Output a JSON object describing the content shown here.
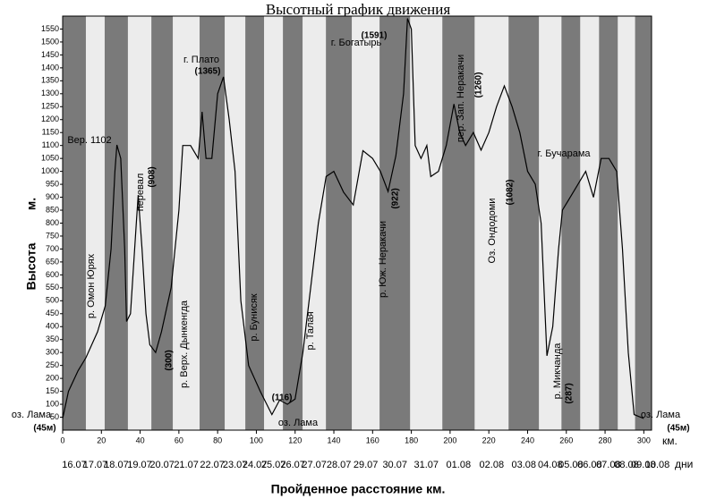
{
  "chart_data": {
    "type": "line",
    "title": "Высотный график движения",
    "xlabel": "Пройденное расстояние км.",
    "ylabel": "Высота",
    "ylabel_unit": "м.",
    "x_unit": "км.",
    "day_unit": "дни",
    "color": "#000000",
    "xlim": [
      0,
      304
    ],
    "ylim": [
      0,
      1600
    ],
    "xticks": [
      0,
      20,
      40,
      60,
      80,
      100,
      120,
      140,
      160,
      180,
      200,
      220,
      240,
      260,
      280,
      300
    ],
    "yticks": [
      50,
      100,
      150,
      200,
      250,
      300,
      350,
      400,
      450,
      500,
      550,
      600,
      650,
      700,
      750,
      800,
      850,
      900,
      950,
      1000,
      1050,
      1100,
      1150,
      1200,
      1250,
      1300,
      1350,
      1400,
      1450,
      1500,
      1550
    ],
    "days": {
      "labels": [
        "16.07",
        "17.07",
        "18.07",
        "19.07",
        "20.07",
        "21.07",
        "22.07",
        "23.07",
        "24.07",
        "25.07",
        "26.07",
        "27.07",
        "28.07",
        "29.07",
        "30.07",
        "31.07",
        "01.08",
        "02.08",
        "03.08",
        "04.08",
        "05.08",
        "06.08",
        "07.08",
        "08.08",
        "09.08",
        "10.08"
      ],
      "bounds": [
        0,
        12,
        21.7,
        33.7,
        45.8,
        56.9,
        70.7,
        83.7,
        94.3,
        104,
        113.7,
        123.9,
        135.9,
        149.3,
        163.6,
        179.4,
        196,
        212.7,
        230.2,
        245.9,
        257.5,
        267.2,
        276.9,
        286.6,
        295.5,
        304,
        310
      ]
    },
    "x": [
      0,
      3,
      8,
      12,
      18,
      22,
      25,
      27,
      28,
      30,
      32,
      33,
      35,
      38,
      39,
      41,
      43,
      45,
      48,
      51,
      56,
      60,
      62,
      66,
      70,
      72,
      74,
      77,
      80,
      83,
      86,
      89,
      92,
      96,
      102,
      108,
      112,
      116,
      120,
      124,
      128,
      132,
      136,
      140,
      145,
      150,
      155,
      160,
      164,
      168,
      172,
      176,
      178,
      180,
      182,
      185,
      188,
      190,
      194,
      198,
      202,
      205,
      208,
      212,
      216,
      220,
      224,
      228,
      232,
      236,
      240,
      244,
      247,
      250,
      253,
      256,
      258,
      262,
      266,
      270,
      274,
      278,
      282,
      286,
      289,
      292,
      295,
      300
    ],
    "values": [
      45,
      150,
      230,
      280,
      380,
      480,
      700,
      1000,
      1102,
      1050,
      700,
      420,
      450,
      800,
      908,
      700,
      450,
      330,
      300,
      380,
      550,
      850,
      1100,
      1100,
      1050,
      1230,
      1050,
      1050,
      1300,
      1365,
      1200,
      1000,
      500,
      250,
      150,
      60,
      116,
      100,
      120,
      300,
      550,
      800,
      980,
      1000,
      920,
      870,
      1080,
      1050,
      1000,
      922,
      1060,
      1300,
      1591,
      1550,
      1100,
      1050,
      1100,
      980,
      1000,
      1100,
      1260,
      1150,
      1100,
      1150,
      1082,
      1150,
      1250,
      1330,
      1250,
      1150,
      1000,
      950,
      800,
      287,
      400,
      700,
      850,
      900,
      950,
      1000,
      900,
      1050,
      1050,
      1000,
      700,
      300,
      60,
      45
    ],
    "annotations": [
      "Вер. 1102",
      "перевал",
      "(908)",
      "г. Плато",
      "(1365)",
      "(1591)",
      "г. Богатырь",
      "пер. Зап. Неракачи",
      "(1260)",
      "Оз. Ондодоми",
      "(1082)",
      "г. Бучарама",
      "р. Омон Юрях",
      "р. Верх. Дынкенгда",
      "(300)",
      "р. Бунисяк",
      "(116)",
      "оз. Лама",
      "р. Талая",
      "р. Юж. Неракачи",
      "(922)",
      "р. Микчанда",
      "(287)",
      "оз. Лама",
      "(45м)",
      "оз. Лама",
      "(45м)"
    ]
  }
}
